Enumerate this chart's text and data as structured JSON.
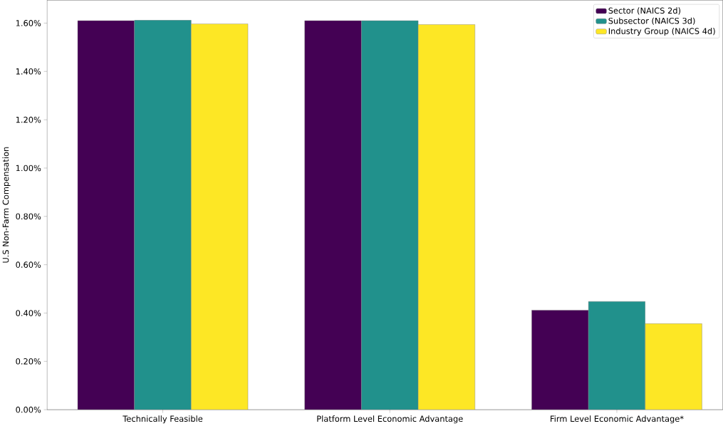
{
  "chart_data": {
    "type": "bar",
    "ylabel": "U.S Non-Farm Compensation",
    "categories": [
      "Technically Feasible",
      "Platform Level Economic Advantage",
      "Firm Level Economic Advantage*"
    ],
    "series": [
      {
        "name": "Sector (NAICS 2d)",
        "color": "#440154",
        "values": [
          1.61,
          1.61,
          0.412
        ]
      },
      {
        "name": "Subsector (NAICS 3d)",
        "color": "#21918c",
        "values": [
          1.612,
          1.61,
          0.448
        ]
      },
      {
        "name": "Industry Group (NAICS 4d)",
        "color": "#fde725",
        "values": [
          1.597,
          1.594,
          0.356
        ]
      }
    ],
    "ylim": [
      0,
      1.695
    ],
    "yticks": [
      {
        "value": 0,
        "label": "0.00%"
      },
      {
        "value": 0.2,
        "label": "0.20%"
      },
      {
        "value": 0.4,
        "label": "0.40%"
      },
      {
        "value": 0.6,
        "label": "0.60%"
      },
      {
        "value": 0.8,
        "label": "0.80%"
      },
      {
        "value": 1.0,
        "label": "1.00%"
      },
      {
        "value": 1.2,
        "label": "1.20%"
      },
      {
        "value": 1.4,
        "label": "1.40%"
      },
      {
        "value": 1.6,
        "label": "1.60%"
      }
    ],
    "grid": false,
    "legend": "top right"
  }
}
